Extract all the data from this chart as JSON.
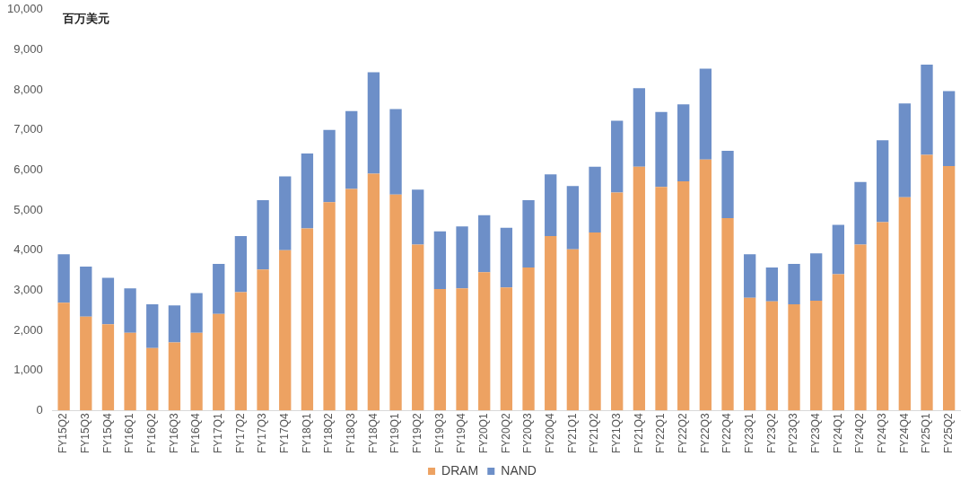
{
  "chart_data": {
    "type": "bar",
    "ylabel": "百万美元",
    "stacked": true,
    "legend": "bottom",
    "grid": false,
    "categories": [
      "FY15Q2",
      "FY15Q3",
      "FY15Q4",
      "FY16Q1",
      "FY16Q2",
      "FY16Q3",
      "FY16Q4",
      "FY17Q1",
      "FY17Q2",
      "FY17Q3",
      "FY17Q4",
      "FY18Q1",
      "FY18Q2",
      "FY18Q3",
      "FY18Q4",
      "FY19Q1",
      "FY19Q2",
      "FY19Q3",
      "FY19Q4",
      "FY20Q1",
      "FY20Q2",
      "FY20Q3",
      "FY20Q4",
      "FY21Q1",
      "FY21Q2",
      "FY21Q3",
      "FY21Q4",
      "FY22Q1",
      "FY22Q2",
      "FY22Q3",
      "FY22Q4",
      "FY23Q1",
      "FY23Q2",
      "FY23Q3",
      "FY23Q4",
      "FY24Q1",
      "FY24Q2",
      "FY24Q3",
      "FY24Q4",
      "FY25Q1",
      "FY25Q2"
    ],
    "series": [
      {
        "name": "DRAM",
        "color": "#eda262",
        "values": [
          2690,
          2340,
          2150,
          1940,
          1560,
          1700,
          1940,
          2410,
          2950,
          3520,
          4000,
          4540,
          5200,
          5530,
          5910,
          5390,
          4140,
          3030,
          3050,
          3450,
          3070,
          3570,
          4350,
          4020,
          4440,
          5440,
          6080,
          5580,
          5720,
          6260,
          4800,
          2810,
          2720,
          2650,
          2740,
          3400,
          4140,
          4700,
          5320,
          6380,
          6100
        ]
      },
      {
        "name": "NAND",
        "color": "#6d8fc8",
        "values": [
          1210,
          1250,
          1160,
          1110,
          1090,
          920,
          990,
          1250,
          1400,
          1730,
          1840,
          1870,
          1800,
          1940,
          2530,
          2130,
          1370,
          1440,
          1540,
          1420,
          1490,
          1680,
          1540,
          1580,
          1640,
          1790,
          1960,
          1870,
          1920,
          2270,
          1680,
          1090,
          850,
          1010,
          1180,
          1230,
          1560,
          2040,
          2340,
          2250,
          1870
        ]
      }
    ],
    "ylim": [
      0,
      10000
    ],
    "yticks": [
      0,
      {
        "value": 1000,
        "label": "1,000"
      },
      {
        "value": 2000,
        "label": "2,000"
      },
      {
        "value": 3000,
        "label": "3,000"
      },
      {
        "value": 4000,
        "label": "4,000"
      },
      {
        "value": 5000,
        "label": "5,000"
      },
      {
        "value": 6000,
        "label": "6,000"
      },
      {
        "value": 7000,
        "label": "7,000"
      },
      {
        "value": 8000,
        "label": "8,000"
      },
      {
        "value": 9000,
        "label": "9,000"
      },
      {
        "value": 10000,
        "label": "10,000"
      }
    ]
  }
}
